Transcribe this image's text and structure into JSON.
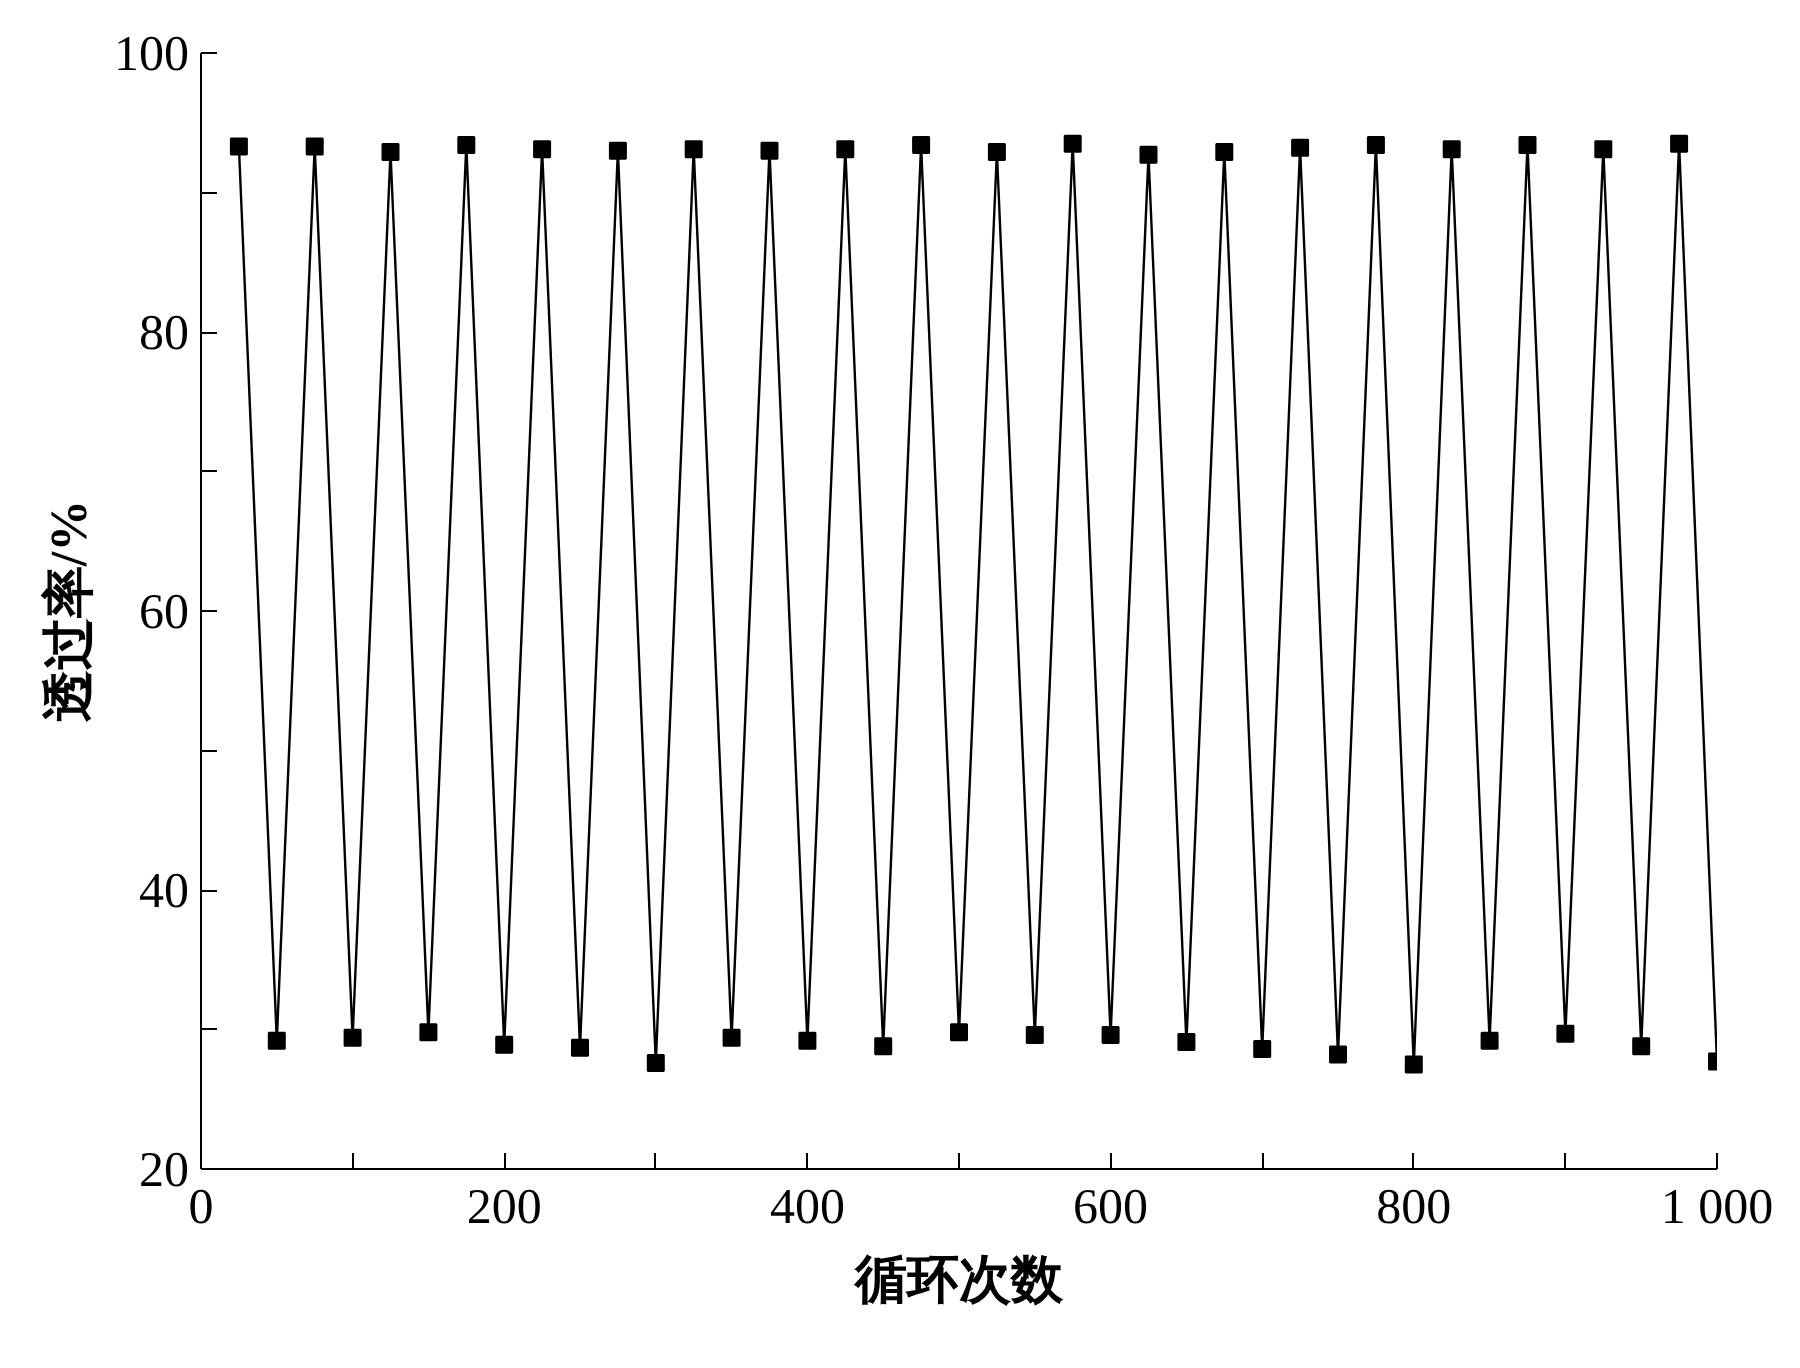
{
  "chart_data": {
    "type": "line",
    "xlabel": "循环次数",
    "ylabel": "透过率/%",
    "x": [
      25,
      50,
      75,
      100,
      125,
      150,
      175,
      200,
      225,
      250,
      275,
      300,
      325,
      350,
      375,
      400,
      425,
      450,
      475,
      500,
      525,
      550,
      575,
      600,
      625,
      650,
      675,
      700,
      725,
      750,
      775,
      800,
      825,
      850,
      875,
      900,
      925,
      950,
      975,
      1000
    ],
    "series": [
      {
        "color": "#000000",
        "values": [
          93.3,
          29.2,
          93.3,
          29.4,
          92.9,
          29.8,
          93.4,
          28.9,
          93.1,
          28.7,
          93.0,
          27.6,
          93.1,
          29.4,
          93.0,
          29.2,
          93.1,
          28.8,
          93.4,
          29.8,
          92.9,
          29.6,
          93.5,
          29.6,
          92.7,
          29.1,
          92.9,
          28.6,
          93.2,
          28.2,
          93.4,
          27.5,
          93.1,
          29.2,
          93.4,
          29.7,
          93.1,
          28.8,
          93.5,
          27.7
        ]
      }
    ],
    "xlim": [
      0,
      1000
    ],
    "ylim": [
      20,
      100
    ],
    "xticks": [
      0,
      {
        "value": 100,
        "label": null
      },
      200,
      {
        "value": 300,
        "label": null
      },
      400,
      {
        "value": 500,
        "label": null
      },
      600,
      {
        "value": 700,
        "label": null
      },
      800,
      {
        "value": 900,
        "label": null
      },
      {
        "value": 1000,
        "label": "1 000"
      }
    ],
    "yticks": [
      20,
      {
        "value": 30,
        "label": null
      },
      40,
      {
        "value": 50,
        "label": null
      },
      60,
      {
        "value": 70,
        "label": null
      },
      80,
      {
        "value": 90,
        "label": null
      },
      100
    ],
    "grid": false,
    "marker": "square",
    "line_style": "solid"
  }
}
